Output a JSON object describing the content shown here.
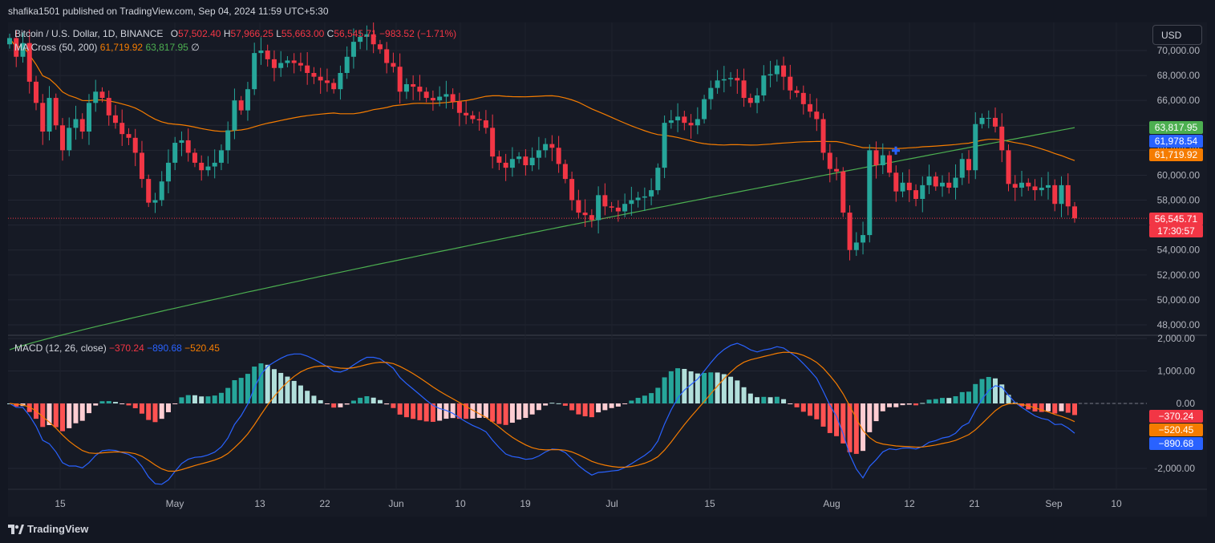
{
  "header": {
    "publisher_line": "shafika1501 published on TradingView.com, Sep 04, 2024 11:59 UTC+5:30"
  },
  "legend": {
    "symbol": "Bitcoin / U.S. Dollar, 1D, BINANCE",
    "open_label": "O",
    "open": "57,502.40",
    "high_label": "H",
    "high": "57,966.25",
    "low_label": "L",
    "low": "55,663.00",
    "close_label": "C",
    "close": "56,545.71",
    "change": "−983.52 (−1.71%)",
    "ma_name": "MA Cross (50, 200)",
    "ma_fast": "61,719.92",
    "ma_slow": "63,817.95",
    "ma_extra": "∅",
    "macd_name": "MACD (12, 26, close)",
    "macd_hist": "−370.24",
    "macd_line": "−890.68",
    "macd_signal": "−520.45"
  },
  "currency_button": "USD",
  "badges": {
    "ma_slow": "63,817.95",
    "cross_price": "61,978.54",
    "ma_fast": "61,719.92",
    "price": "56,545.71",
    "countdown": "17:30:57",
    "macd_hist": "−370.24",
    "macd_signal": "−520.45",
    "macd_line": "−890.68"
  },
  "branding": {
    "name": "TradingView"
  },
  "colors": {
    "bull": "#26a69a",
    "bear": "#f23645",
    "ma_fast": "#f57c00",
    "ma_slow": "#4caf50",
    "macd": "#2962ff",
    "signal": "#f57c00"
  },
  "chart_data": [
    {
      "type": "candlestick",
      "title": "Bitcoin / U.S. Dollar, 1D, BINANCE",
      "y_ticks": [
        "70,000.00",
        "68,000.00",
        "66,000.00",
        "64,000.00",
        "62,000.00",
        "60,000.00",
        "58,000.00",
        "56,000.00",
        "54,000.00",
        "52,000.00",
        "50,000.00",
        "48,000.00"
      ],
      "y_tick_values": [
        70000,
        68000,
        66000,
        64000,
        62000,
        60000,
        58000,
        56000,
        54000,
        52000,
        50000,
        48000
      ],
      "x_ticks": [
        "15",
        "May",
        "13",
        "22",
        "Jun",
        "10",
        "19",
        "Jul",
        "15",
        "Aug",
        "12",
        "21",
        "Sep",
        "10"
      ],
      "last_price": 56545.71,
      "ma_fast_last": 61719.92,
      "ma_slow_last": 63817.95,
      "cross_marker_price": 61978.54,
      "closes": [
        71000,
        69500,
        70600,
        67500,
        65800,
        63500,
        66200,
        64000,
        62000,
        63800,
        64500,
        63500,
        65800,
        66700,
        66200,
        64800,
        64200,
        63300,
        63000,
        61800,
        59700,
        57800,
        58000,
        59500,
        61000,
        62600,
        62800,
        61800,
        61000,
        60400,
        60700,
        61000,
        62000,
        63600,
        66000,
        65200,
        66900,
        69800,
        70000,
        69300,
        68600,
        69000,
        69200,
        69000,
        68800,
        68200,
        67900,
        67600,
        67400,
        66900,
        68200,
        69500,
        70700,
        71100,
        71300,
        70500,
        70100,
        69000,
        68700,
        66700,
        67300,
        67100,
        66700,
        66200,
        66000,
        66300,
        66500,
        65900,
        65000,
        64800,
        64500,
        64400,
        63800,
        61500,
        61000,
        60600,
        61300,
        61500,
        60800,
        61400,
        62000,
        62500,
        62200,
        60900,
        59700,
        58000,
        57000,
        56800,
        56400,
        58400,
        57500,
        57400,
        57100,
        57700,
        58000,
        58200,
        58300,
        58800,
        60600,
        64200,
        64400,
        64700,
        64200,
        64000,
        64500,
        66100,
        67000,
        67600,
        67700,
        67800,
        67600,
        66200,
        65800,
        66400,
        68000,
        68100,
        68800,
        67900,
        66800,
        66600,
        65700,
        65100,
        64500,
        61800,
        60500,
        60300,
        57000,
        54000,
        54600,
        55200,
        62000,
        60800,
        61600,
        60200,
        58700,
        59400,
        58800,
        58100,
        59200,
        59900,
        59100,
        59400,
        59000,
        59800,
        61300,
        60400,
        64100,
        64600,
        64600,
        63900,
        62000,
        59300,
        59000,
        59400,
        59100,
        58800,
        59000,
        59200,
        57700,
        59200,
        57500,
        56545
      ]
    },
    {
      "type": "bar",
      "title": "MACD (12, 26, close)",
      "y_ticks": [
        "2,000.00",
        "1,000.00",
        "0.00",
        "-2,000.00"
      ],
      "y_tick_values": [
        2000,
        1000,
        0,
        -2000
      ],
      "hist_last": -370.24,
      "macd_last": -890.68,
      "signal_last": -520.45
    }
  ]
}
